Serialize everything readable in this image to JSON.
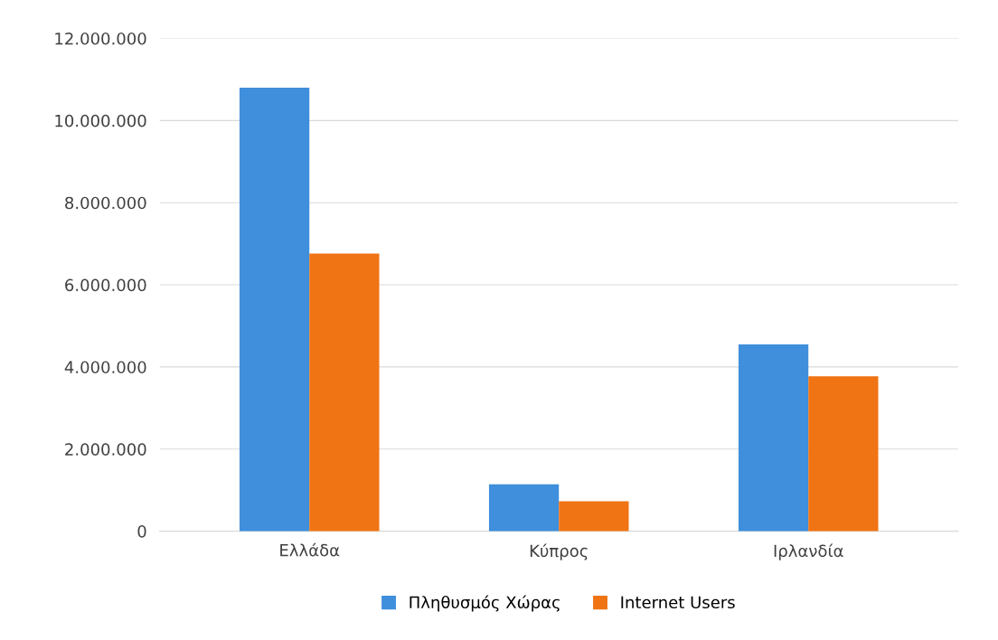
{
  "chart_data": {
    "type": "bar",
    "categories": [
      "Ελλάδα",
      "Κύπρος",
      "Ιρλανδία"
    ],
    "series": [
      {
        "name": "Πληθυσμός Χώρας",
        "color": "#3f8fdc",
        "values": [
          10800000,
          1140000,
          4550000
        ]
      },
      {
        "name": "Internet Users",
        "color": "#f07414",
        "values": [
          6760000,
          730000,
          3770000
        ]
      }
    ],
    "ylim": [
      0,
      12000000
    ],
    "yticks": [
      {
        "value": 0,
        "label": "0"
      },
      {
        "value": 2000000,
        "label": "2.000.000"
      },
      {
        "value": 4000000,
        "label": "4.000.000"
      },
      {
        "value": 6000000,
        "label": "6.000.000"
      },
      {
        "value": 8000000,
        "label": "8.000.000"
      },
      {
        "value": 10000000,
        "label": "10.000.000"
      },
      {
        "value": 12000000,
        "label": "12.000.000"
      }
    ],
    "grid": "y",
    "legend": "bottom"
  }
}
